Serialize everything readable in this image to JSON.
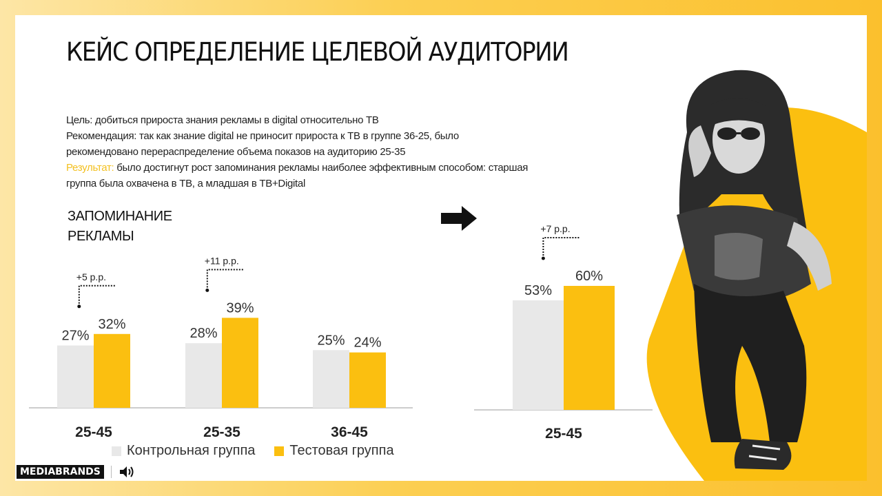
{
  "slide": {
    "title": "КЕЙС ОПРЕДЕЛЕНИЕ ЦЕЛЕВОЙ АУДИТОРИИ",
    "goal": "Цель: добиться прироста знания рекламы в digital относительно ТВ",
    "recommendation_line1": "Рекомендация: так как знание digital не приносит прироста к ТВ в группе 36-25, было",
    "recommendation_line2": "рекомендовано перераспределение объема показов на аудиторию 25-35",
    "result_label": "Результат:",
    "result_text_line1": " было достигнут рост запоминания рекламы наиболее эффективным способом: старшая",
    "result_text_line2": "группа была охвачена в ТВ, а младшая в ТВ+Digital",
    "metric_line1": "ЗАПОМИНАНИЕ",
    "metric_line2": "РЕКЛАМЫ",
    "logo": "MEDIABRANDS",
    "icons": [
      "arrow-right-icon",
      "speaker-icon"
    ]
  },
  "legend": {
    "control": "Контрольная группа",
    "test": "Тестовая группа"
  },
  "colors": {
    "control": "#e8e8e8",
    "test": "#fbbf10",
    "accent": "#f3c020",
    "background_gradient": [
      "#fde6a6",
      "#fbc02d"
    ]
  },
  "chart_data": [
    {
      "type": "bar",
      "categories": [
        "25-45",
        "25-35",
        "36-45"
      ],
      "series": [
        {
          "name": "Контрольная группа",
          "values": [
            27,
            28,
            25
          ]
        },
        {
          "name": "Тестовая группа",
          "values": [
            32,
            39,
            24
          ]
        }
      ],
      "value_labels": {
        "control": [
          "27%",
          "28%",
          "25%"
        ],
        "test": [
          "32%",
          "39%",
          "24%"
        ]
      },
      "annotations": [
        "+5 p.p.",
        "+11 p.p.",
        ""
      ],
      "ylim": [
        0,
        60
      ]
    },
    {
      "type": "bar",
      "categories": [
        "25-45"
      ],
      "series": [
        {
          "name": "Контрольная группа",
          "values": [
            53
          ]
        },
        {
          "name": "Тестовая группа",
          "values": [
            60
          ]
        }
      ],
      "value_labels": {
        "control": [
          "53%"
        ],
        "test": [
          "60%"
        ]
      },
      "annotations": [
        "+7 p.p."
      ],
      "ylim": [
        0,
        75
      ]
    }
  ]
}
